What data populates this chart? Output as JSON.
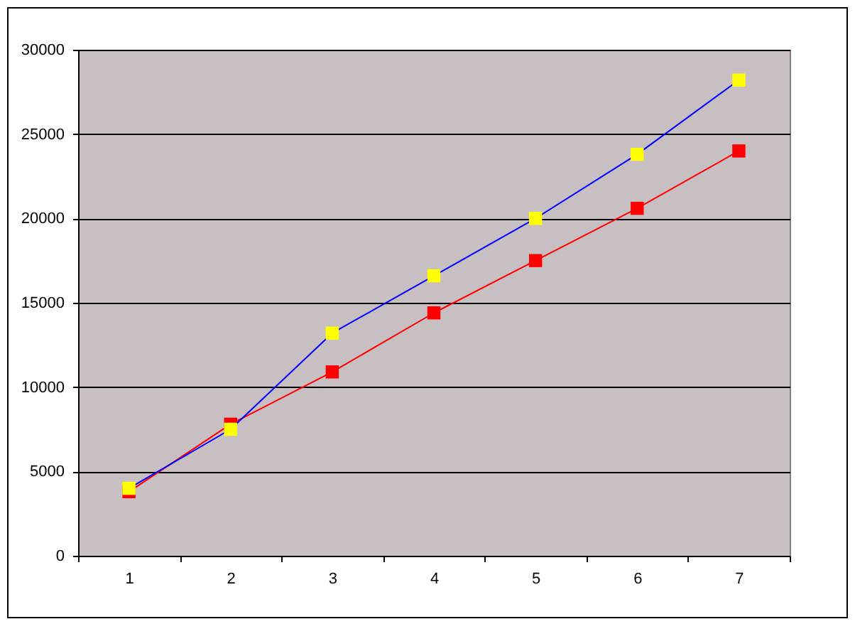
{
  "chart_data": {
    "type": "line",
    "categories": [
      "1",
      "2",
      "3",
      "4",
      "5",
      "6",
      "7"
    ],
    "series": [
      {
        "color": "#ff0000",
        "values": [
          3800,
          7800,
          10900,
          14400,
          17500,
          20600,
          24000
        ]
      },
      {
        "color": "#0000ff",
        "colors": [
          "#ffff00",
          "#ffff00",
          "#ffff00",
          "#ffff00",
          "#ffff00",
          "#ffff00",
          "#ffff00"
        ],
        "values": [
          4000,
          7500,
          13200,
          16600,
          20000,
          23800,
          28200
        ]
      }
    ],
    "ylim": [
      0,
      30000
    ],
    "yticks": [
      0,
      5000,
      10000,
      15000,
      20000,
      25000,
      30000
    ],
    "grid": "y",
    "marker": "square",
    "line_style": "solid"
  }
}
